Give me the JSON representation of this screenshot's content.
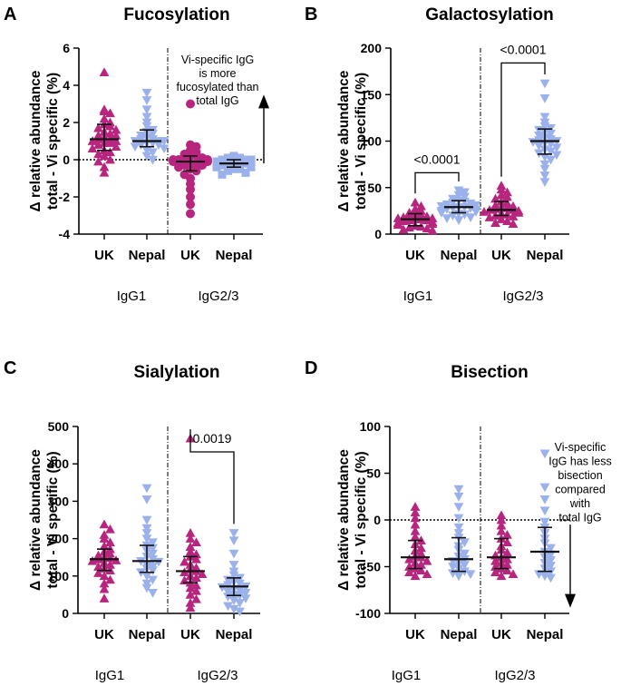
{
  "colors": {
    "uk": "#b8257e",
    "nepal": "#9bb1ec",
    "summary": "#111111"
  },
  "y_axis_label_line1": "Δ relative abundance",
  "y_axis_label_line2": "total - Vi specific (%)",
  "chart_data": [
    {
      "panel": "A",
      "title": "Fucosylation",
      "type": "scatter",
      "ylim": [
        -4,
        6
      ],
      "yticks": [
        -4,
        -2,
        0,
        2,
        4,
        6
      ],
      "zero_line": true,
      "groups": [
        "IgG1",
        "IgG2/3"
      ],
      "categories": [
        "UK",
        "Nepal",
        "UK",
        "Nepal"
      ],
      "series": [
        {
          "name": "IgG1 UK",
          "marker": "triangle-up",
          "color_key": "uk",
          "median": 1.1,
          "q1": 0.5,
          "q3": 1.9,
          "values": [
            4.7,
            2.7,
            2.6,
            2.5,
            2.2,
            2.0,
            1.9,
            1.8,
            1.7,
            1.6,
            1.5,
            1.4,
            1.3,
            1.3,
            1.2,
            1.1,
            1.1,
            1.0,
            1.0,
            0.9,
            0.9,
            0.8,
            0.7,
            0.6,
            0.5,
            0.4,
            0.3,
            0.2,
            0.0,
            -0.1,
            -0.4,
            -0.7
          ]
        },
        {
          "name": "IgG1 Nepal",
          "marker": "triangle-down",
          "color_key": "nepal",
          "median": 1.0,
          "q1": 0.7,
          "q3": 1.6,
          "values": [
            3.6,
            3.2,
            2.7,
            2.3,
            2.0,
            1.8,
            1.6,
            1.5,
            1.4,
            1.3,
            1.2,
            1.1,
            1.1,
            1.0,
            1.0,
            1.0,
            0.9,
            0.9,
            0.8,
            0.8,
            0.7,
            0.6,
            0.5,
            0.4,
            0.2,
            0.0
          ]
        },
        {
          "name": "IgG2/3 UK",
          "marker": "circle",
          "color_key": "uk",
          "median": -0.1,
          "q1": -0.6,
          "q3": 0.2,
          "values": [
            3.0,
            0.8,
            0.7,
            0.5,
            0.4,
            0.3,
            0.2,
            0.2,
            0.1,
            0.1,
            0.0,
            0.0,
            0.0,
            -0.1,
            -0.1,
            -0.2,
            -0.2,
            -0.3,
            -0.3,
            -0.4,
            -0.5,
            -0.6,
            -0.8,
            -1.0,
            -1.3,
            -1.6,
            -2.0,
            -2.4,
            -2.9
          ]
        },
        {
          "name": "IgG2/3 Nepal",
          "marker": "square",
          "color_key": "nepal",
          "median": -0.2,
          "q1": -0.4,
          "q3": 0.0,
          "values": [
            0.2,
            0.1,
            0.1,
            0.0,
            0.0,
            0.0,
            -0.1,
            -0.1,
            -0.1,
            -0.2,
            -0.2,
            -0.2,
            -0.2,
            -0.3,
            -0.3,
            -0.3,
            -0.4,
            -0.4,
            -0.5,
            -0.5,
            -0.6,
            -0.7,
            -0.8
          ]
        }
      ],
      "annotation": {
        "text": [
          "Vi-specific IgG",
          "is more",
          "fucosylated than",
          "total IgG"
        ],
        "arrow": "up",
        "arrow_from": -0.2,
        "arrow_to": 3.2
      }
    },
    {
      "panel": "B",
      "title": "Galactosylation",
      "type": "scatter",
      "ylim": [
        0,
        200
      ],
      "yticks": [
        0,
        50,
        100,
        150,
        200
      ],
      "zero_line": false,
      "groups": [
        "IgG1",
        "IgG2/3"
      ],
      "categories": [
        "UK",
        "Nepal",
        "UK",
        "Nepal"
      ],
      "series": [
        {
          "name": "IgG1 UK",
          "marker": "triangle-up",
          "color_key": "uk",
          "median": 16,
          "q1": 9,
          "q3": 22,
          "values": [
            34,
            30,
            27,
            25,
            23,
            22,
            21,
            20,
            19,
            18,
            17,
            17,
            16,
            16,
            15,
            15,
            14,
            13,
            12,
            11,
            10,
            9,
            8,
            7,
            6,
            5,
            4
          ]
        },
        {
          "name": "IgG1 Nepal",
          "marker": "triangle-down",
          "color_key": "nepal",
          "median": 29,
          "q1": 23,
          "q3": 36,
          "values": [
            47,
            45,
            42,
            40,
            38,
            36,
            35,
            34,
            33,
            32,
            31,
            30,
            29,
            29,
            28,
            28,
            27,
            26,
            25,
            24,
            23,
            22,
            21,
            20,
            18,
            17,
            15
          ]
        },
        {
          "name": "IgG2/3 UK",
          "marker": "triangle-up",
          "color_key": "uk",
          "median": 26,
          "q1": 20,
          "q3": 35,
          "values": [
            52,
            48,
            45,
            42,
            40,
            38,
            35,
            33,
            31,
            30,
            29,
            28,
            27,
            26,
            26,
            25,
            24,
            23,
            22,
            21,
            20,
            19,
            18,
            16,
            14,
            12,
            11
          ]
        },
        {
          "name": "IgG2/3 Nepal",
          "marker": "triangle-down",
          "color_key": "nepal",
          "median": 100,
          "q1": 86,
          "q3": 113,
          "values": [
            162,
            146,
            126,
            120,
            116,
            114,
            112,
            110,
            108,
            106,
            104,
            102,
            101,
            100,
            99,
            98,
            97,
            95,
            93,
            91,
            89,
            87,
            85,
            83,
            80,
            75,
            70,
            63,
            56
          ]
        }
      ],
      "brackets": [
        {
          "label": "<0.0001",
          "from": 0,
          "to": 1,
          "y": 66
        },
        {
          "label": "<0.0001",
          "from": 2,
          "to": 3,
          "y": 184
        }
      ]
    },
    {
      "panel": "C",
      "title": "Sialylation",
      "type": "scatter",
      "ylim": [
        0,
        500
      ],
      "yticks": [
        0,
        100,
        200,
        300,
        400,
        500
      ],
      "zero_line": false,
      "groups": [
        "IgG1",
        "IgG2/3"
      ],
      "categories": [
        "UK",
        "Nepal",
        "UK",
        "Nepal"
      ],
      "series": [
        {
          "name": "IgG1 UK",
          "marker": "triangle-up",
          "color_key": "uk",
          "median": 145,
          "q1": 115,
          "q3": 172,
          "values": [
            238,
            225,
            210,
            200,
            190,
            180,
            172,
            165,
            160,
            155,
            150,
            148,
            145,
            142,
            140,
            135,
            130,
            125,
            120,
            115,
            108,
            100,
            90,
            80,
            65,
            40
          ]
        },
        {
          "name": "IgG1 Nepal",
          "marker": "triangle-down",
          "color_key": "nepal",
          "median": 140,
          "q1": 110,
          "q3": 182,
          "values": [
            335,
            305,
            250,
            228,
            215,
            200,
            190,
            182,
            175,
            168,
            160,
            152,
            145,
            140,
            138,
            130,
            125,
            120,
            115,
            110,
            100,
            90,
            80,
            68,
            55
          ]
        },
        {
          "name": "IgG2/3 UK",
          "marker": "triangle-up",
          "color_key": "uk",
          "median": 113,
          "q1": 82,
          "q3": 152,
          "values": [
            468,
            215,
            200,
            190,
            178,
            165,
            158,
            152,
            145,
            138,
            130,
            122,
            118,
            113,
            110,
            105,
            100,
            95,
            88,
            82,
            75,
            68,
            60,
            50,
            38,
            28,
            15
          ]
        },
        {
          "name": "IgG2/3 Nepal",
          "marker": "triangle-down",
          "color_key": "nepal",
          "median": 72,
          "q1": 48,
          "q3": 95,
          "values": [
            215,
            195,
            160,
            130,
            112,
            102,
            95,
            90,
            85,
            80,
            76,
            72,
            70,
            66,
            62,
            58,
            55,
            50,
            48,
            45,
            40,
            35,
            28,
            20,
            12,
            5
          ]
        }
      ],
      "brackets": [
        {
          "label": "0.0019",
          "from": 2,
          "to": 3,
          "y": 432
        }
      ]
    },
    {
      "panel": "D",
      "title": "Bisection",
      "type": "scatter",
      "ylim": [
        -100,
        100
      ],
      "yticks": [
        -100,
        -50,
        0,
        50,
        100
      ],
      "zero_line": true,
      "groups": [
        "IgG1",
        "IgG2/3"
      ],
      "categories": [
        "UK",
        "Nepal",
        "UK",
        "Nepal"
      ],
      "series": [
        {
          "name": "IgG1 UK",
          "marker": "triangle-up",
          "color_key": "uk",
          "median": -40,
          "q1": -52,
          "q3": -22,
          "values": [
            14,
            8,
            2,
            -5,
            -12,
            -18,
            -22,
            -26,
            -30,
            -33,
            -36,
            -39,
            -40,
            -42,
            -44,
            -46,
            -48,
            -50,
            -52,
            -54,
            -56,
            -58,
            -60
          ]
        },
        {
          "name": "IgG1 Nepal",
          "marker": "triangle-down",
          "color_key": "nepal",
          "median": -42,
          "q1": -55,
          "q3": -19,
          "values": [
            33,
            25,
            14,
            2,
            -8,
            -14,
            -19,
            -24,
            -28,
            -32,
            -36,
            -39,
            -42,
            -44,
            -46,
            -48,
            -50,
            -52,
            -55,
            -57,
            -58,
            -60
          ]
        },
        {
          "name": "IgG2/3 UK",
          "marker": "triangle-up",
          "color_key": "uk",
          "median": -40,
          "q1": -52,
          "q3": -20,
          "values": [
            5,
            0,
            -6,
            -12,
            -16,
            -20,
            -24,
            -28,
            -32,
            -35,
            -38,
            -40,
            -42,
            -44,
            -46,
            -48,
            -50,
            -52,
            -54,
            -56,
            -58,
            -60
          ]
        },
        {
          "name": "IgG2/3 Nepal",
          "marker": "triangle-down",
          "color_key": "nepal",
          "median": -34,
          "q1": -55,
          "q3": -8,
          "values": [
            71,
            35,
            22,
            10,
            -2,
            -8,
            -14,
            -20,
            -25,
            -30,
            -34,
            -37,
            -40,
            -43,
            -46,
            -49,
            -52,
            -55,
            -58,
            -60,
            -62
          ]
        }
      ],
      "annotation": {
        "text": [
          "Vi-specific",
          "IgG has less",
          "bisection",
          "compared",
          "with",
          "total IgG"
        ],
        "arrow": "down",
        "arrow_from": -5,
        "arrow_to": -88
      }
    }
  ]
}
